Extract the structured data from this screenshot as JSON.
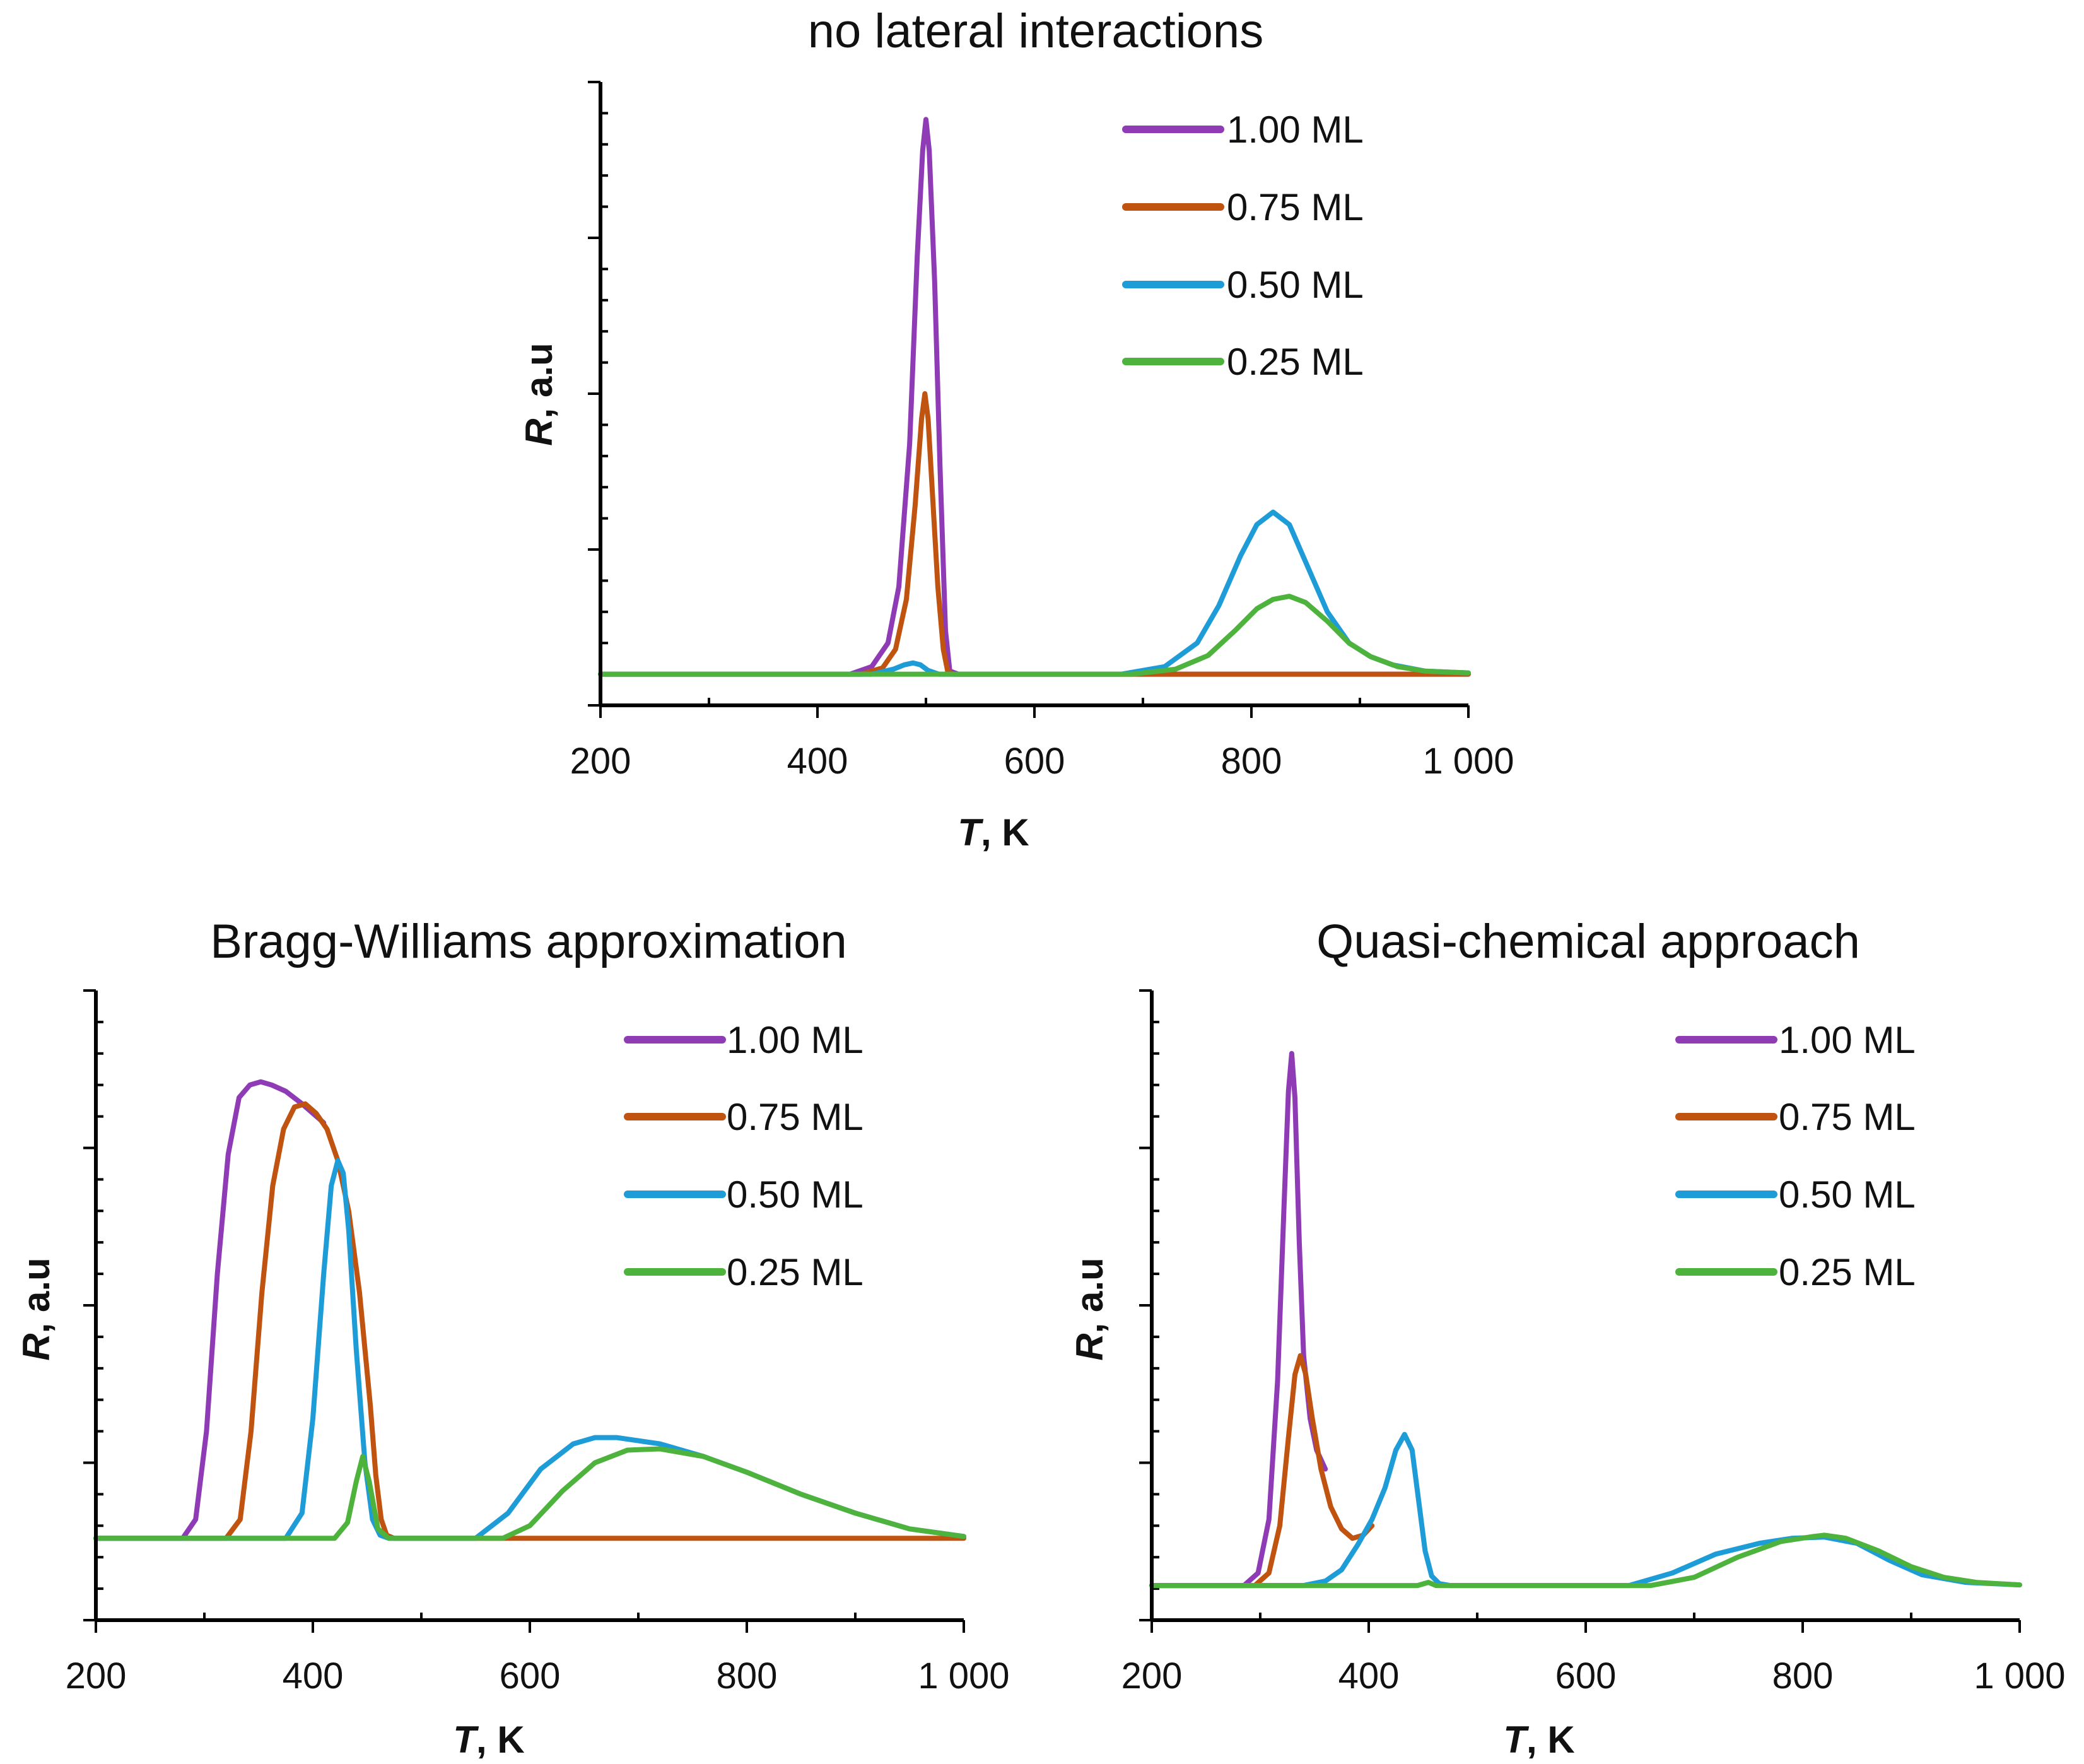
{
  "figure": {
    "colors": {
      "1.00 ML": "#8E3BB5",
      "0.75 ML": "#C0530F",
      "0.50 ML": "#1E9CD8",
      "0.25 ML": "#4DB33C"
    }
  },
  "chart_data": [
    {
      "type": "line",
      "title": "no lateral interactions",
      "xlabel_italic": "T",
      "xlabel_rest": ", K",
      "ylabel_italic": "R",
      "ylabel_rest": ", a.u",
      "xlim": [
        200,
        1000
      ],
      "ylim": [
        0,
        10
      ],
      "x_ticks": [
        200,
        400,
        600,
        800,
        1000
      ],
      "x_tick_labels": [
        "200",
        "400",
        "600",
        "800",
        "1 000"
      ],
      "y_major_ticks": [
        0,
        2.5,
        5,
        7.5,
        10
      ],
      "y_minor_step": 0.5,
      "legend_position": "top-right",
      "series": [
        {
          "name": "1.00 ML",
          "color": "#8E3BB5",
          "x": [
            200,
            430,
            450,
            465,
            475,
            485,
            492,
            497,
            500,
            503,
            508,
            513,
            518,
            522,
            530,
            1000
          ],
          "y": [
            0.5,
            0.5,
            0.62,
            1.0,
            1.9,
            4.2,
            7.2,
            8.9,
            9.4,
            8.9,
            6.8,
            3.8,
            1.2,
            0.55,
            0.5,
            0.5
          ]
        },
        {
          "name": "0.75 ML",
          "color": "#C0530F",
          "x": [
            200,
            440,
            460,
            472,
            482,
            490,
            496,
            499,
            502,
            506,
            511,
            516,
            520,
            525,
            1000
          ],
          "y": [
            0.5,
            0.5,
            0.6,
            0.9,
            1.7,
            3.2,
            4.6,
            5.0,
            4.6,
            3.4,
            1.9,
            0.9,
            0.55,
            0.5,
            0.5
          ]
        },
        {
          "name": "0.50 ML",
          "color": "#1E9CD8",
          "x": [
            200,
            450,
            470,
            480,
            488,
            495,
            502,
            512,
            520,
            680,
            720,
            750,
            770,
            790,
            805,
            820,
            835,
            850,
            870,
            890,
            910,
            930,
            960,
            1000
          ],
          "y": [
            0.5,
            0.5,
            0.58,
            0.65,
            0.68,
            0.65,
            0.56,
            0.5,
            0.5,
            0.5,
            0.62,
            1.0,
            1.6,
            2.4,
            2.9,
            3.1,
            2.9,
            2.3,
            1.5,
            1.0,
            0.78,
            0.65,
            0.55,
            0.52
          ]
        },
        {
          "name": "0.25 ML",
          "color": "#4DB33C",
          "x": [
            200,
            690,
            730,
            760,
            785,
            805,
            820,
            835,
            850,
            870,
            890,
            910,
            935,
            960,
            1000
          ],
          "y": [
            0.5,
            0.5,
            0.58,
            0.8,
            1.2,
            1.55,
            1.7,
            1.75,
            1.65,
            1.35,
            1.0,
            0.78,
            0.62,
            0.55,
            0.52
          ]
        }
      ]
    },
    {
      "type": "line",
      "title": "Bragg-Williams approximation",
      "xlabel_italic": "T",
      "xlabel_rest": ", K",
      "ylabel_italic": "R",
      "ylabel_rest": ", a.u",
      "xlim": [
        200,
        1000
      ],
      "ylim": [
        0,
        10
      ],
      "x_ticks": [
        200,
        400,
        600,
        800,
        1000
      ],
      "x_tick_labels": [
        "200",
        "400",
        "600",
        "800",
        "1 000"
      ],
      "y_major_ticks": [
        0,
        2.5,
        5,
        7.5,
        10
      ],
      "y_minor_step": 0.5,
      "legend_position": "top-right",
      "series": [
        {
          "name": "1.00 ML",
          "color": "#8E3BB5",
          "x": [
            200,
            280,
            292,
            302,
            312,
            322,
            332,
            342,
            352,
            362,
            375,
            390,
            400,
            410
          ],
          "y": [
            1.3,
            1.3,
            1.6,
            3.0,
            5.5,
            7.4,
            8.3,
            8.5,
            8.55,
            8.5,
            8.4,
            8.2,
            8.05,
            7.9
          ]
        },
        {
          "name": "0.75 ML",
          "color": "#C0530F",
          "x": [
            200,
            320,
            333,
            343,
            353,
            363,
            373,
            383,
            393,
            403,
            413,
            423,
            433,
            443,
            453,
            458,
            463,
            468,
            475,
            1000
          ],
          "y": [
            1.3,
            1.3,
            1.6,
            3.0,
            5.2,
            6.9,
            7.8,
            8.15,
            8.2,
            8.05,
            7.8,
            7.3,
            6.5,
            5.2,
            3.4,
            2.3,
            1.6,
            1.35,
            1.3,
            1.3
          ]
        },
        {
          "name": "0.50 ML",
          "color": "#1E9CD8",
          "x": [
            200,
            375,
            390,
            400,
            410,
            417,
            423,
            428,
            433,
            440,
            448,
            455,
            462,
            470,
            550,
            580,
            610,
            640,
            660,
            680,
            700,
            720,
            760,
            800,
            850,
            900,
            950,
            1000
          ],
          "y": [
            1.3,
            1.3,
            1.7,
            3.2,
            5.5,
            6.9,
            7.3,
            7.1,
            6.2,
            4.3,
            2.5,
            1.6,
            1.35,
            1.3,
            1.3,
            1.7,
            2.4,
            2.8,
            2.9,
            2.9,
            2.85,
            2.8,
            2.6,
            2.35,
            2.0,
            1.7,
            1.45,
            1.33
          ]
        },
        {
          "name": "0.25 ML",
          "color": "#4DB33C",
          "x": [
            200,
            420,
            432,
            440,
            446,
            452,
            460,
            470,
            575,
            600,
            630,
            660,
            690,
            720,
            760,
            800,
            850,
            900,
            950,
            1000
          ],
          "y": [
            1.3,
            1.3,
            1.55,
            2.2,
            2.6,
            2.2,
            1.45,
            1.3,
            1.3,
            1.5,
            2.05,
            2.5,
            2.7,
            2.72,
            2.6,
            2.35,
            2.0,
            1.7,
            1.45,
            1.33
          ]
        }
      ]
    },
    {
      "type": "line",
      "title": "Quasi-chemical approach",
      "xlabel_italic": "T",
      "xlabel_rest": ", K",
      "ylabel_italic": "R",
      "ylabel_rest": ", a.u",
      "xlim": [
        200,
        1000
      ],
      "ylim": [
        0,
        10
      ],
      "x_ticks": [
        200,
        400,
        600,
        800,
        1000
      ],
      "x_tick_labels": [
        "200",
        "400",
        "600",
        "800",
        "1 000"
      ],
      "y_major_ticks": [
        0,
        2.5,
        5,
        7.5,
        10
      ],
      "y_minor_step": 0.5,
      "legend_position": "top-right",
      "series": [
        {
          "name": "1.00 ML",
          "color": "#8E3BB5",
          "x": [
            200,
            285,
            298,
            308,
            316,
            322,
            326,
            329,
            332,
            336,
            340,
            346,
            352,
            360
          ],
          "y": [
            0.55,
            0.55,
            0.75,
            1.6,
            3.8,
            6.6,
            8.4,
            9.0,
            8.3,
            6.0,
            4.2,
            3.2,
            2.7,
            2.4
          ]
        },
        {
          "name": "0.75 ML",
          "color": "#C0530F",
          "x": [
            200,
            295,
            308,
            318,
            326,
            332,
            337,
            342,
            348,
            356,
            365,
            375,
            385,
            395,
            403
          ],
          "y": [
            0.55,
            0.55,
            0.75,
            1.5,
            2.9,
            3.9,
            4.2,
            3.9,
            3.2,
            2.4,
            1.8,
            1.45,
            1.3,
            1.35,
            1.5
          ]
        },
        {
          "name": "0.50 ML",
          "color": "#1E9CD8",
          "x": [
            200,
            340,
            360,
            375,
            390,
            403,
            415,
            425,
            433,
            440,
            446,
            452,
            458,
            465,
            475,
            640,
            680,
            720,
            760,
            790,
            820,
            850,
            880,
            910,
            950,
            1000
          ],
          "y": [
            0.55,
            0.55,
            0.62,
            0.8,
            1.2,
            1.6,
            2.1,
            2.7,
            2.95,
            2.7,
            1.9,
            1.1,
            0.7,
            0.58,
            0.55,
            0.55,
            0.75,
            1.05,
            1.22,
            1.3,
            1.32,
            1.22,
            0.95,
            0.72,
            0.6,
            0.56
          ]
        },
        {
          "name": "0.25 ML",
          "color": "#4DB33C",
          "x": [
            200,
            445,
            455,
            462,
            470,
            660,
            700,
            740,
            780,
            810,
            820,
            840,
            870,
            900,
            930,
            960,
            1000
          ],
          "y": [
            0.55,
            0.55,
            0.6,
            0.55,
            0.55,
            0.55,
            0.68,
            1.0,
            1.25,
            1.33,
            1.35,
            1.3,
            1.1,
            0.85,
            0.68,
            0.6,
            0.56
          ]
        }
      ]
    }
  ]
}
